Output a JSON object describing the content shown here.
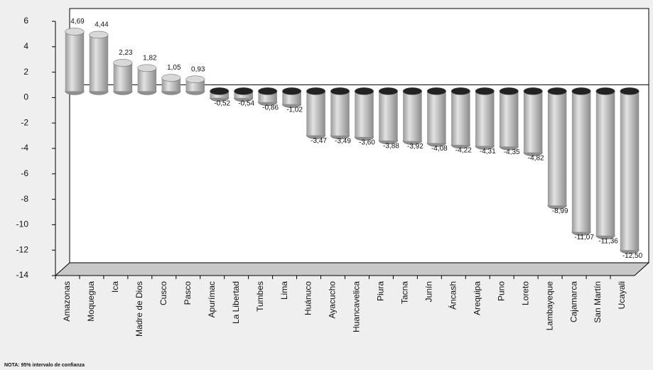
{
  "chart_data": {
    "type": "bar",
    "categories": [
      "Amazonas",
      "Moquegua",
      "Ica",
      "Madre de Dios",
      "Cusco",
      "Pasco",
      "Apurímac",
      "La Libertad",
      "Tumbes",
      "Lima",
      "Huánuco",
      "Ayacucho",
      "Huancavelica",
      "Piura",
      "Tacna",
      "Junín",
      "Áncash",
      "Arequipa",
      "Puno",
      "Loreto",
      "Lambayeque",
      "Cajamarca",
      "San Martín",
      "Ucayali"
    ],
    "values": [
      4.69,
      4.44,
      2.23,
      1.82,
      1.05,
      0.93,
      -0.52,
      -0.54,
      -0.86,
      -1.02,
      -3.47,
      -3.49,
      -3.6,
      -3.88,
      -3.92,
      -4.08,
      -4.22,
      -4.31,
      -4.35,
      -4.82,
      -8.99,
      -11.07,
      -11.36,
      -12.5
    ],
    "value_labels": [
      "4,69",
      "4,44",
      "2,23",
      "1,82",
      "1,05",
      "0,93",
      "-0,52",
      "-0,54",
      "-0,86",
      "-1,02",
      "-3,47",
      "-3,49",
      "-3,60",
      "-3,88",
      "-3,92",
      "-4,08",
      "-4,22",
      "-4,31",
      "-4,35",
      "-4,82",
      "-8,99",
      "-11,07",
      "-11,36",
      "-12,50"
    ],
    "color": "#c4c4c4",
    "ylim": [
      -14,
      6
    ],
    "yticks": [
      -14,
      -12,
      -10,
      -8,
      -6,
      -4,
      -2,
      0,
      2,
      4,
      6
    ],
    "note": "NOTA: 95% intervalo de confianza"
  }
}
